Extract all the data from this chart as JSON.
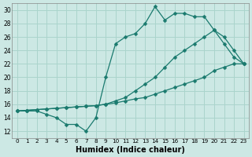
{
  "xlabel": "Humidex (Indice chaleur)",
  "background_color": "#cce8e4",
  "grid_color": "#aad4cc",
  "line_color": "#1a7a6e",
  "xlim": [
    -0.5,
    23.5
  ],
  "ylim": [
    11,
    31
  ],
  "yticks": [
    12,
    14,
    16,
    18,
    20,
    22,
    24,
    26,
    28,
    30
  ],
  "xticks": [
    0,
    1,
    2,
    3,
    4,
    5,
    6,
    7,
    8,
    9,
    10,
    11,
    12,
    13,
    14,
    15,
    16,
    17,
    18,
    19,
    20,
    21,
    22,
    23
  ],
  "line1_x": [
    0,
    1,
    2,
    3,
    4,
    5,
    6,
    7,
    8,
    9,
    10,
    11,
    12,
    13,
    14,
    15,
    16,
    17,
    18,
    19,
    20,
    21,
    22,
    23
  ],
  "line1_y": [
    15,
    15,
    15,
    14.5,
    14,
    13,
    13,
    12,
    14,
    20,
    25,
    26,
    26.5,
    28,
    30.5,
    28.5,
    29.5,
    29.5,
    29,
    29,
    27,
    25,
    23,
    22
  ],
  "line2_x": [
    0,
    1,
    2,
    3,
    4,
    5,
    6,
    7,
    8,
    9,
    10,
    11,
    12,
    13,
    14,
    15,
    16,
    17,
    18,
    19,
    20,
    21,
    22,
    23
  ],
  "line2_y": [
    15,
    15.1,
    15.2,
    15.3,
    15.4,
    15.5,
    15.6,
    15.7,
    15.8,
    16,
    16.5,
    17,
    18,
    19,
    20,
    21.5,
    23,
    24,
    25,
    26,
    27,
    26,
    24,
    22
  ],
  "line3_x": [
    0,
    1,
    2,
    3,
    4,
    5,
    6,
    7,
    8,
    9,
    10,
    11,
    12,
    13,
    14,
    15,
    16,
    17,
    18,
    19,
    20,
    21,
    22,
    23
  ],
  "line3_y": [
    15,
    15.1,
    15.2,
    15.3,
    15.4,
    15.5,
    15.6,
    15.7,
    15.8,
    16,
    16.2,
    16.5,
    16.8,
    17,
    17.5,
    18,
    18.5,
    19,
    19.5,
    20,
    21,
    21.5,
    22,
    22
  ],
  "marker_size": 2.5,
  "linewidth": 0.9
}
